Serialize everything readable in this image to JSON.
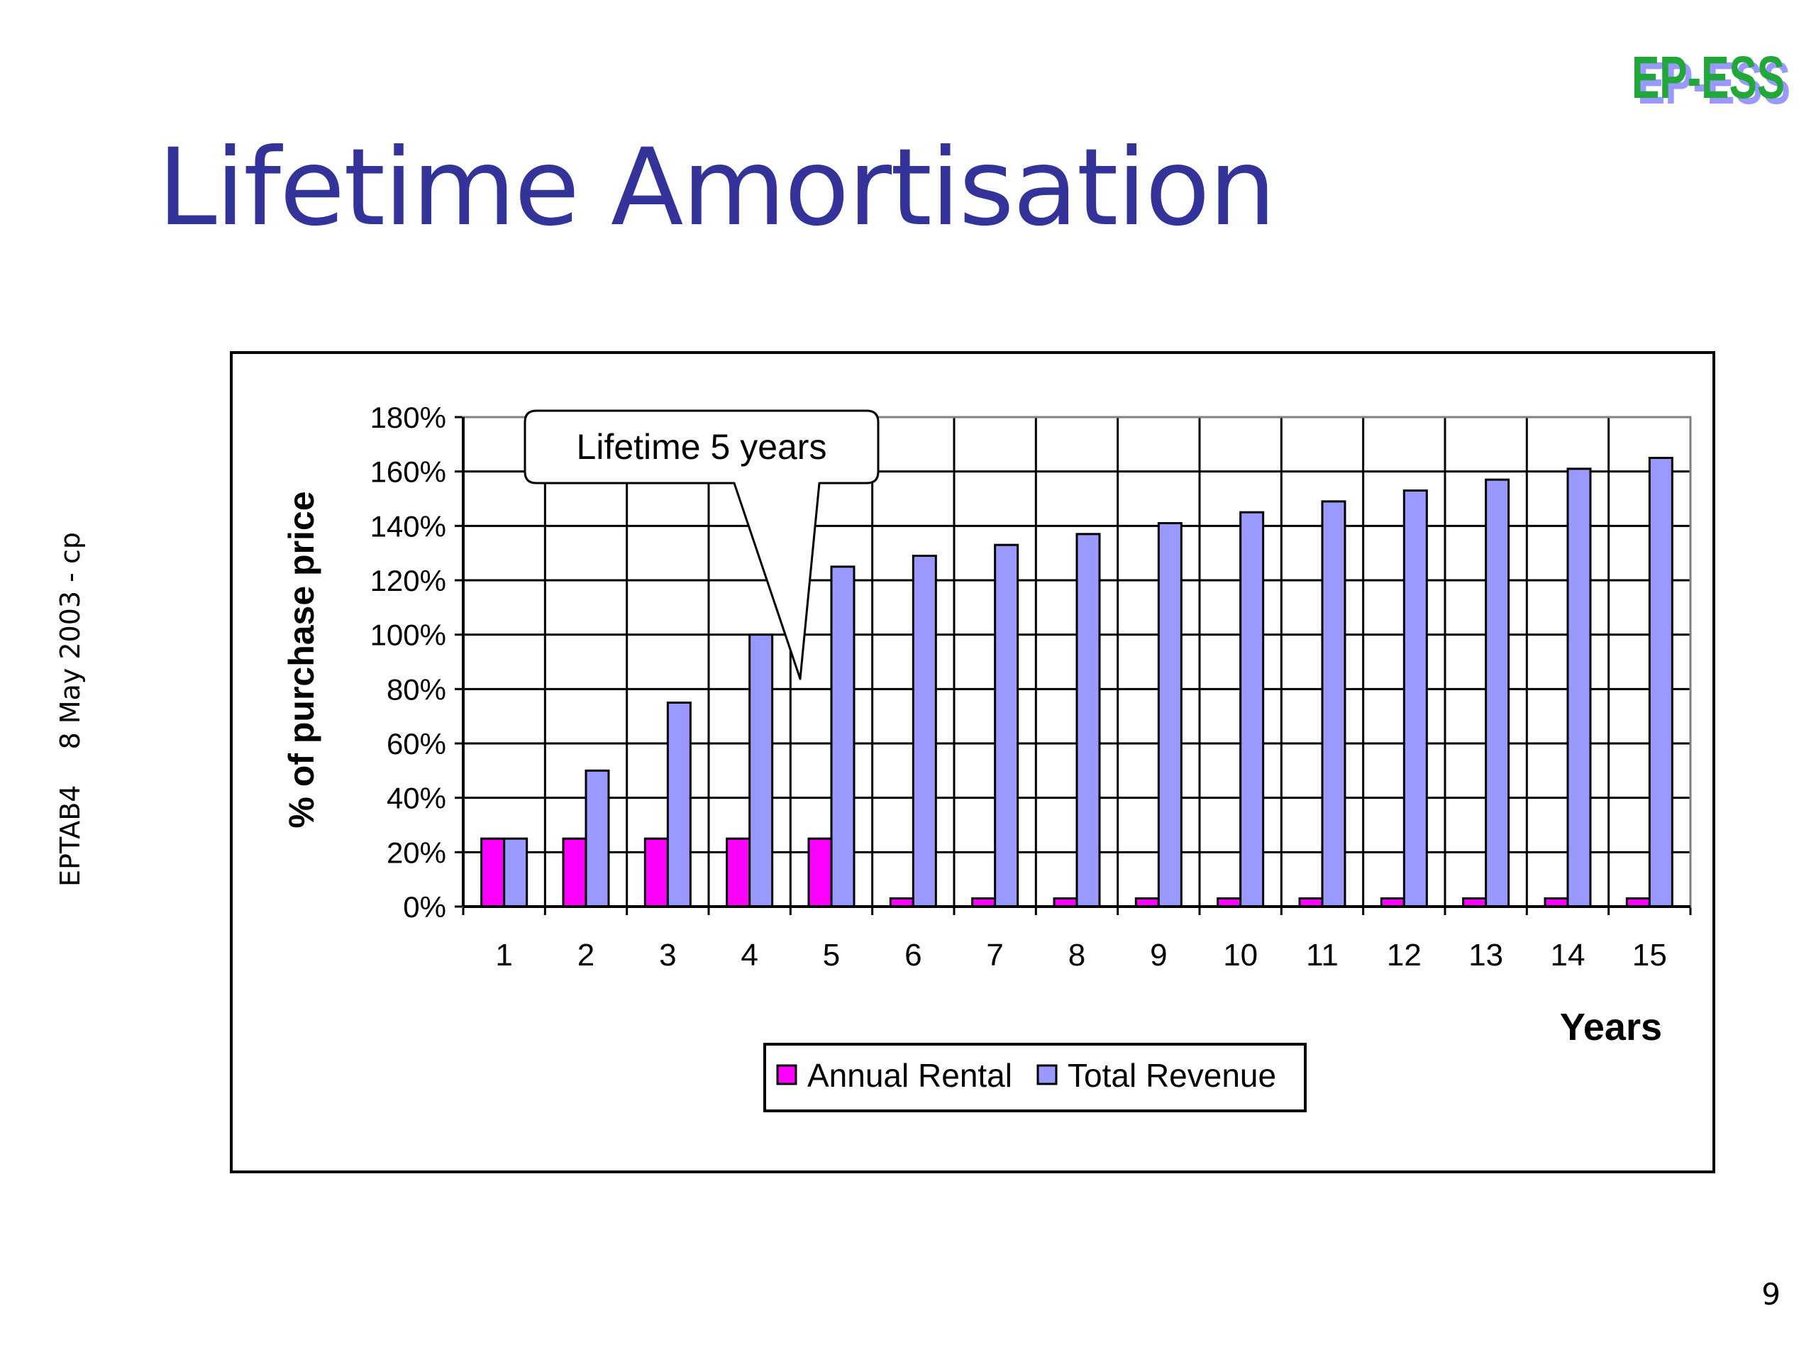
{
  "slide": {
    "title": "Lifetime Amortisation",
    "footer_code": "EPTAB4",
    "footer_date": "8 May 2003 - cp",
    "page_number": "9",
    "logo_text": "EP-ESS"
  },
  "colors": {
    "title": "#333399",
    "annual_rental": "#FF00FF",
    "total_revenue": "#9999FF",
    "logo_green": "#22A83A",
    "logo_shadow": "#9999FF"
  },
  "chart_data": {
    "type": "bar",
    "categories": [
      "1",
      "2",
      "3",
      "4",
      "5",
      "6",
      "7",
      "8",
      "9",
      "10",
      "11",
      "12",
      "13",
      "14",
      "15"
    ],
    "series": [
      {
        "name": "Annual Rental",
        "values": [
          25,
          25,
          25,
          25,
          25,
          3,
          3,
          3,
          3,
          3,
          3,
          3,
          3,
          3,
          3
        ]
      },
      {
        "name": "Total Revenue",
        "values": [
          25,
          50,
          75,
          100,
          125,
          129,
          133,
          137,
          141,
          145,
          149,
          153,
          157,
          161,
          165
        ]
      }
    ],
    "xlabel": "Years",
    "ylabel": "% of purchase price",
    "ylim": [
      0,
      180
    ],
    "yticks": [
      "0%",
      "20%",
      "40%",
      "60%",
      "80%",
      "100%",
      "120%",
      "140%",
      "160%",
      "180%"
    ],
    "grid": true,
    "legend": "bottom-center",
    "annotation": {
      "text": "Lifetime 5 years",
      "points_to_category": "5"
    }
  }
}
